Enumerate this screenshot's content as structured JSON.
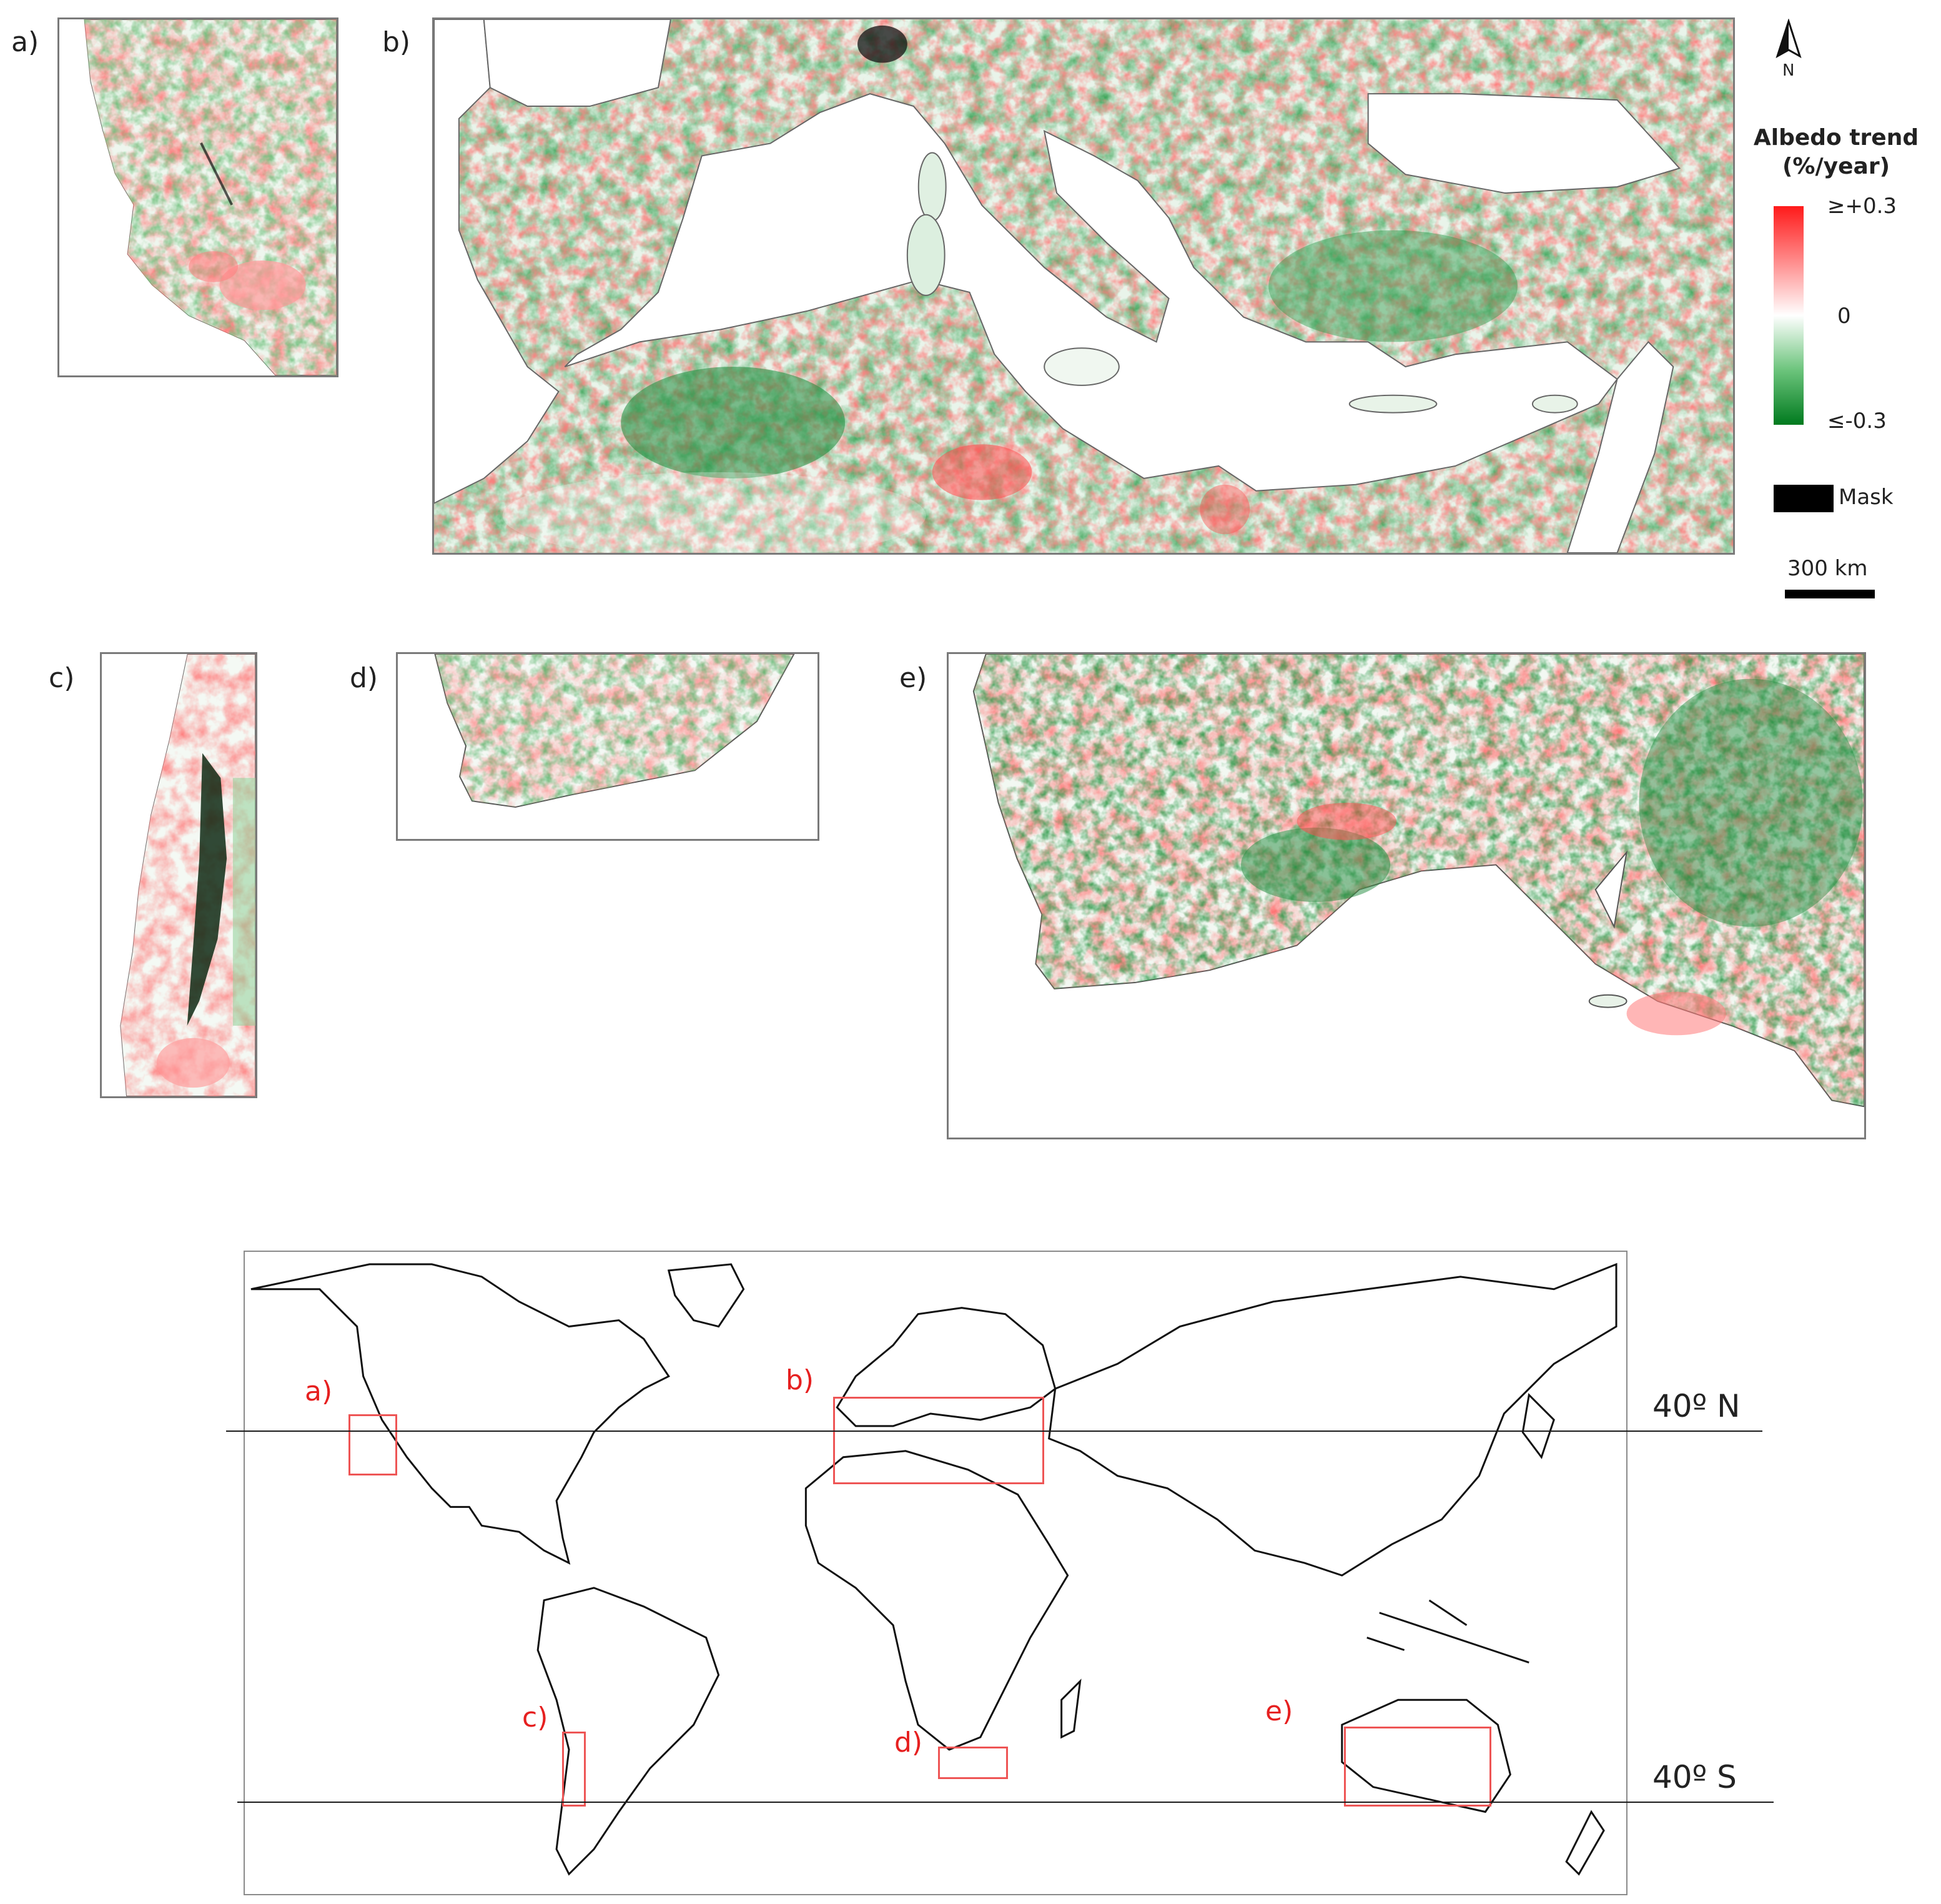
{
  "panels": [
    {
      "id": "a",
      "label": "a)"
    },
    {
      "id": "b",
      "label": "b)"
    },
    {
      "id": "c",
      "label": "c)"
    },
    {
      "id": "d",
      "label": "d)"
    },
    {
      "id": "e",
      "label": "e)"
    }
  ],
  "legend": {
    "north_label": "N",
    "title_line1": "Albedo trend",
    "title_line2": "(%/year)",
    "tick_max": "≥+0.3",
    "tick_mid": "0",
    "tick_min": "≤-0.3",
    "mask_label": "Mask",
    "scale_label": "300 km",
    "color_max": "#ff1a1a",
    "color_mid": "#ffffff",
    "color_min": "#007a1e",
    "mask_color": "#000000"
  },
  "overview_map": {
    "lat_north_label": "40º N",
    "lat_south_label": "40º S",
    "region_labels": [
      "a)",
      "b)",
      "c)",
      "d)",
      "e)"
    ],
    "region_color": "#e62020"
  }
}
